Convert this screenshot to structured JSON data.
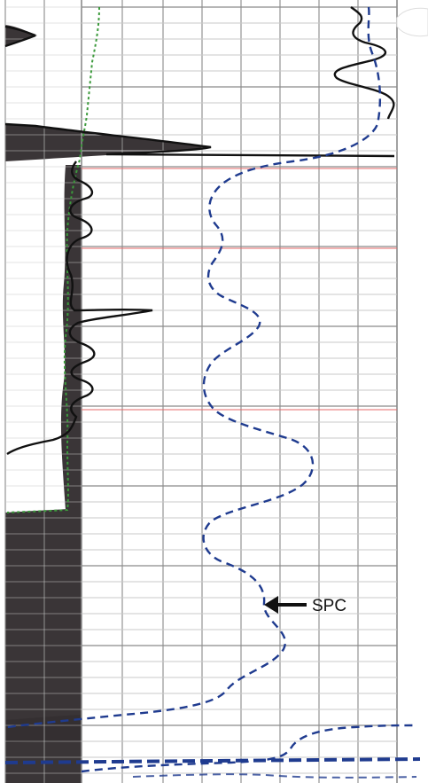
{
  "log": {
    "annotation": "SPC",
    "colors": {
      "paper": "#ffffff",
      "grid_major": "#8a8a8a",
      "grid_minor": "#c8c8c8",
      "red_line": "#e46a6a",
      "shale_fill": "#3a3537",
      "resistivity_curve": "#111111",
      "spc_curve": "#1f3b8f",
      "gamma_curve": "#3c9a3c",
      "arrow": "#111111"
    }
  }
}
